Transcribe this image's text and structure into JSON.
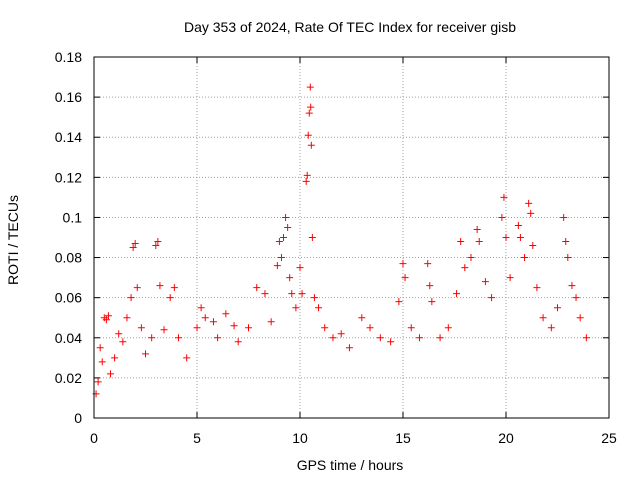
{
  "chart_data": {
    "type": "scatter",
    "title": "Day 353 of 2024, Rate Of TEC Index for receiver gisb",
    "xlabel": "GPS time / hours",
    "ylabel": "ROTI / TECUs",
    "xlim": [
      0,
      25
    ],
    "ylim": [
      0,
      0.18
    ],
    "xticks": [
      0,
      5,
      10,
      15,
      20,
      25
    ],
    "xtick_labels": [
      "0",
      "5",
      "10",
      "15",
      "20",
      "25"
    ],
    "yticks": [
      0,
      0.02,
      0.04,
      0.06,
      0.08,
      0.1,
      0.12,
      0.14,
      0.16,
      0.18
    ],
    "ytick_labels": [
      "0",
      "0.02",
      "0.04",
      "0.06",
      "0.08",
      "0.1",
      "0.12",
      "0.14",
      "0.16",
      "0.18"
    ],
    "grid": true,
    "marker": "+",
    "marker_color": "#ff0000",
    "series": [
      {
        "name": "ROTI",
        "points": [
          [
            0.1,
            0.012
          ],
          [
            0.2,
            0.018
          ],
          [
            0.3,
            0.035
          ],
          [
            0.4,
            0.028
          ],
          [
            0.5,
            0.05
          ],
          [
            0.6,
            0.049
          ],
          [
            0.7,
            0.051
          ],
          [
            0.8,
            0.022
          ],
          [
            1.0,
            0.03
          ],
          [
            1.2,
            0.042
          ],
          [
            1.4,
            0.038
          ],
          [
            1.6,
            0.05
          ],
          [
            1.8,
            0.06
          ],
          [
            1.9,
            0.085
          ],
          [
            2.0,
            0.087
          ],
          [
            2.1,
            0.065
          ],
          [
            2.3,
            0.045
          ],
          [
            2.5,
            0.032
          ],
          [
            2.8,
            0.04
          ],
          [
            3.0,
            0.086
          ],
          [
            3.1,
            0.088
          ],
          [
            3.2,
            0.066
          ],
          [
            3.4,
            0.044
          ],
          [
            3.7,
            0.06
          ],
          [
            3.9,
            0.065
          ],
          [
            4.1,
            0.04
          ],
          [
            4.5,
            0.03
          ],
          [
            5.0,
            0.045
          ],
          [
            5.2,
            0.055
          ],
          [
            5.4,
            0.05
          ],
          [
            5.8,
            0.048
          ],
          [
            6.0,
            0.04
          ],
          [
            6.4,
            0.052
          ],
          [
            6.8,
            0.046
          ],
          [
            7.0,
            0.038
          ],
          [
            7.5,
            0.045
          ],
          [
            7.9,
            0.065
          ],
          [
            8.3,
            0.062
          ],
          [
            8.6,
            0.048
          ],
          [
            8.9,
            0.076
          ],
          [
            9.0,
            0.088
          ],
          [
            9.1,
            0.08
          ],
          [
            9.2,
            0.09
          ],
          [
            9.3,
            0.1
          ],
          [
            9.4,
            0.095
          ],
          [
            9.5,
            0.07
          ],
          [
            9.6,
            0.062
          ],
          [
            9.8,
            0.055
          ],
          [
            10.0,
            0.075
          ],
          [
            10.1,
            0.062
          ],
          [
            10.3,
            0.118
          ],
          [
            10.35,
            0.121
          ],
          [
            10.4,
            0.141
          ],
          [
            10.45,
            0.152
          ],
          [
            10.5,
            0.165
          ],
          [
            10.52,
            0.155
          ],
          [
            10.55,
            0.136
          ],
          [
            10.6,
            0.09
          ],
          [
            10.7,
            0.06
          ],
          [
            10.9,
            0.055
          ],
          [
            11.2,
            0.045
          ],
          [
            11.6,
            0.04
          ],
          [
            12.0,
            0.042
          ],
          [
            12.4,
            0.035
          ],
          [
            13.0,
            0.05
          ],
          [
            13.4,
            0.045
          ],
          [
            13.9,
            0.04
          ],
          [
            14.4,
            0.038
          ],
          [
            14.8,
            0.058
          ],
          [
            15.0,
            0.077
          ],
          [
            15.1,
            0.07
          ],
          [
            15.4,
            0.045
          ],
          [
            15.8,
            0.04
          ],
          [
            16.2,
            0.077
          ],
          [
            16.3,
            0.066
          ],
          [
            16.4,
            0.058
          ],
          [
            16.8,
            0.04
          ],
          [
            17.2,
            0.045
          ],
          [
            17.6,
            0.062
          ],
          [
            17.8,
            0.088
          ],
          [
            18.0,
            0.075
          ],
          [
            18.3,
            0.08
          ],
          [
            18.6,
            0.094
          ],
          [
            18.7,
            0.088
          ],
          [
            19.0,
            0.068
          ],
          [
            19.3,
            0.06
          ],
          [
            19.8,
            0.1
          ],
          [
            19.9,
            0.11
          ],
          [
            20.0,
            0.09
          ],
          [
            20.2,
            0.07
          ],
          [
            20.6,
            0.096
          ],
          [
            20.7,
            0.09
          ],
          [
            20.9,
            0.08
          ],
          [
            21.1,
            0.107
          ],
          [
            21.2,
            0.102
          ],
          [
            21.3,
            0.086
          ],
          [
            21.5,
            0.065
          ],
          [
            21.8,
            0.05
          ],
          [
            22.2,
            0.045
          ],
          [
            22.5,
            0.055
          ],
          [
            22.8,
            0.1
          ],
          [
            22.9,
            0.088
          ],
          [
            23.0,
            0.08
          ],
          [
            23.2,
            0.066
          ],
          [
            23.4,
            0.06
          ],
          [
            23.6,
            0.05
          ],
          [
            23.9,
            0.04
          ]
        ]
      }
    ]
  }
}
